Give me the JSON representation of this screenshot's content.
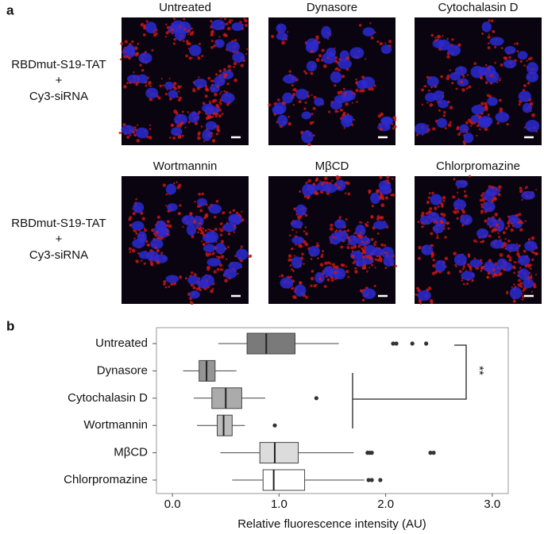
{
  "panel_a": {
    "label": "a",
    "images": [
      "Untreated",
      "Dynasore",
      "Cytochalasin D",
      "Wortmannin",
      "MβCD",
      "Chlorpromazine"
    ],
    "row_labels": [
      [
        "RBDmut-S19-TAT",
        "+",
        "Cy3-siRNA"
      ],
      [
        "RBDmut-S19-TAT",
        "+",
        "Cy3-siRNA"
      ]
    ]
  },
  "chart_data": {
    "type": "box",
    "panel_label": "b",
    "categories": [
      "Untreated",
      "Dynasore",
      "Cytochalasin D",
      "Wortmannin",
      "MβCD",
      "Chlorpromazine"
    ],
    "boxes": [
      {
        "min": 0.43,
        "q1": 0.7,
        "median": 0.88,
        "q3": 1.15,
        "max": 1.56,
        "outliers": [
          2.07,
          2.1,
          2.25,
          2.38
        ],
        "color": "#7a7a7a"
      },
      {
        "min": 0.1,
        "q1": 0.25,
        "median": 0.32,
        "q3": 0.4,
        "max": 0.6,
        "outliers": [],
        "color": "#959595"
      },
      {
        "min": 0.2,
        "q1": 0.37,
        "median": 0.5,
        "q3": 0.65,
        "max": 0.87,
        "outliers": [
          1.35
        ],
        "color": "#ababab"
      },
      {
        "min": 0.23,
        "q1": 0.42,
        "median": 0.48,
        "q3": 0.56,
        "max": 0.68,
        "outliers": [
          0.96
        ],
        "color": "#bdbdbd"
      },
      {
        "min": 0.45,
        "q1": 0.82,
        "median": 0.96,
        "q3": 1.18,
        "max": 1.7,
        "outliers": [
          1.83,
          1.85,
          1.87,
          2.42,
          2.45
        ],
        "color": "#dcdcdc"
      },
      {
        "min": 0.56,
        "q1": 0.85,
        "median": 0.95,
        "q3": 1.24,
        "max": 1.8,
        "outliers": [
          1.84,
          1.87,
          1.95
        ],
        "color": "#ffffff"
      }
    ],
    "xlim": [
      -0.15,
      3.15
    ],
    "xticks": [
      {
        "value": 0,
        "label": "0.0"
      },
      {
        "value": 1,
        "label": "1.0"
      },
      {
        "value": 2,
        "label": "2.0"
      },
      {
        "value": 3,
        "label": "3.0"
      }
    ],
    "xlabel": "Relative fluorescence intensity (AU)",
    "annotation": "**"
  }
}
